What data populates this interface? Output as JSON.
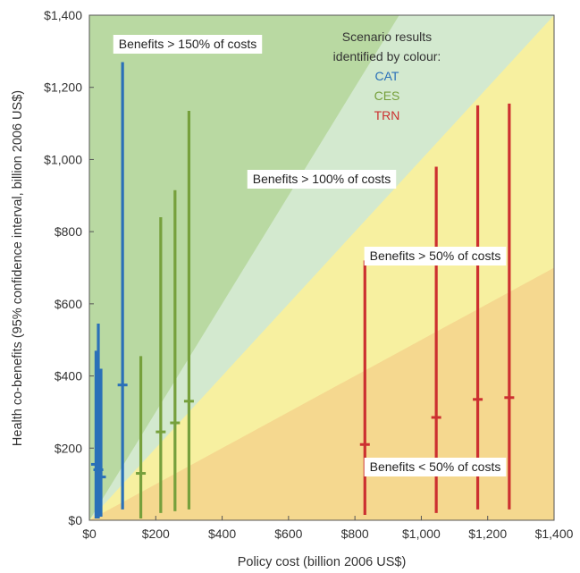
{
  "chart_data": {
    "type": "scatter",
    "xlabel": "Policy cost (billion 2006 US$)",
    "ylabel": "Health co-benefits (95% confidence interval, billion 2006 US$)",
    "xlim": [
      0,
      1400
    ],
    "ylim": [
      0,
      1400
    ],
    "x_ticks": [
      "$0",
      "$200",
      "$400",
      "$600",
      "$800",
      "$1,000",
      "$1,200",
      "$1,400"
    ],
    "y_ticks": [
      "$0",
      "$200",
      "$400",
      "$600",
      "$800",
      "$1,000",
      "$1,200",
      "$1,400"
    ],
    "x_tick_values": [
      0,
      200,
      400,
      600,
      800,
      1000,
      1200,
      1400
    ],
    "y_tick_values": [
      0,
      200,
      400,
      600,
      800,
      1000,
      1200,
      1400
    ],
    "regions": [
      {
        "label": "Benefits > 150% of costs",
        "ratio": 1.5,
        "color": "#b9d9a2"
      },
      {
        "label": "Benefits > 100% of costs",
        "ratio": 1.0,
        "color": "#d3e9cf"
      },
      {
        "label": "Benefits > 50% of costs",
        "ratio": 0.5,
        "color": "#f7f0a0"
      },
      {
        "label": "Benefits < 50% of costs",
        "ratio": 0.0,
        "color": "#f5d88f"
      }
    ],
    "legend": {
      "title_line1": "Scenario results",
      "title_line2": "identified by colour:",
      "entries": [
        {
          "name": "CAT",
          "color": "#2a70b8"
        },
        {
          "name": "CES",
          "color": "#76a03c"
        },
        {
          "name": "TRN",
          "color": "#cc3030"
        }
      ]
    },
    "series": [
      {
        "name": "CAT",
        "color": "#2a70b8",
        "points": [
          {
            "x": 20,
            "low": 5,
            "high": 470,
            "mid": 155
          },
          {
            "x": 27,
            "low": 5,
            "high": 545,
            "mid": 140
          },
          {
            "x": 35,
            "low": 10,
            "high": 420,
            "mid": 120
          },
          {
            "x": 100,
            "low": 30,
            "high": 1270,
            "mid": 375
          }
        ]
      },
      {
        "name": "CES",
        "color": "#76a03c",
        "points": [
          {
            "x": 155,
            "low": 5,
            "high": 455,
            "mid": 130
          },
          {
            "x": 215,
            "low": 20,
            "high": 840,
            "mid": 245
          },
          {
            "x": 258,
            "low": 25,
            "high": 915,
            "mid": 270
          },
          {
            "x": 300,
            "low": 30,
            "high": 1135,
            "mid": 330
          }
        ]
      },
      {
        "name": "TRN",
        "color": "#cc3030",
        "points": [
          {
            "x": 830,
            "low": 15,
            "high": 720,
            "mid": 210
          },
          {
            "x": 1045,
            "low": 20,
            "high": 980,
            "mid": 285
          },
          {
            "x": 1170,
            "low": 30,
            "high": 1150,
            "mid": 335
          },
          {
            "x": 1265,
            "low": 30,
            "high": 1155,
            "mid": 340
          }
        ]
      }
    ]
  }
}
